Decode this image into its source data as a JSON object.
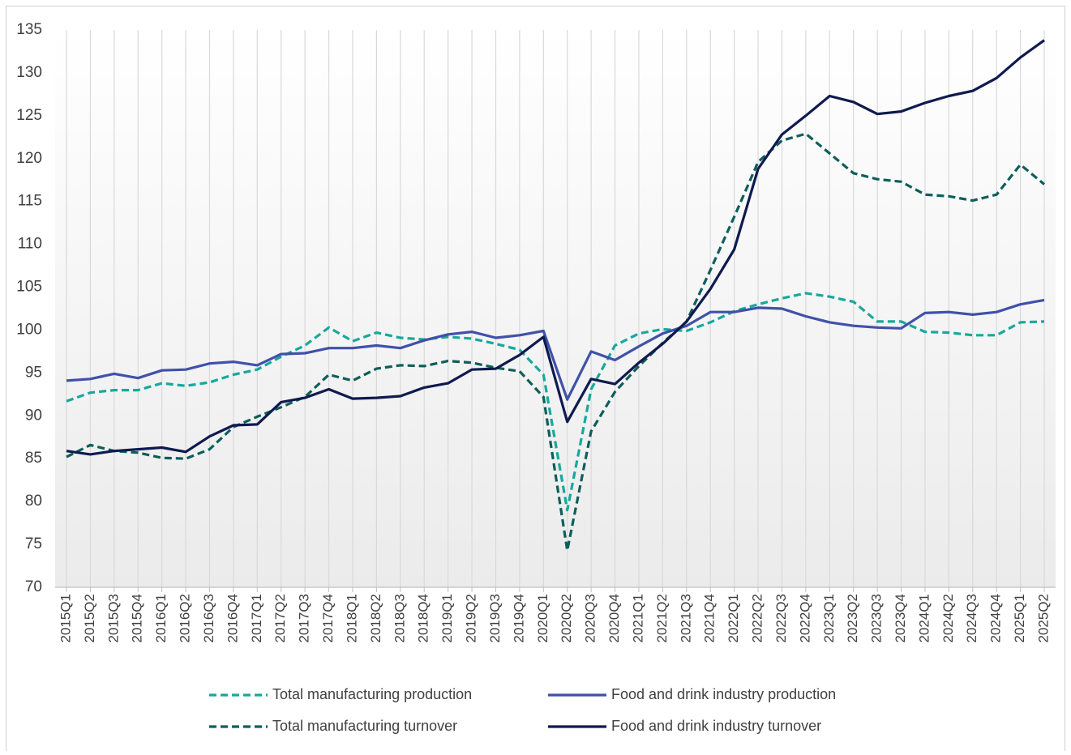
{
  "chart_data": {
    "type": "line",
    "categories": [
      "2015Q1",
      "2015Q2",
      "2015Q3",
      "2015Q4",
      "2016Q1",
      "2016Q2",
      "2016Q3",
      "2016Q4",
      "2017Q1",
      "2017Q2",
      "2017Q3",
      "2017Q4",
      "2018Q1",
      "2018Q2",
      "2018Q3",
      "2018Q4",
      "2019Q1",
      "2019Q2",
      "2019Q3",
      "2019Q4",
      "2020Q1",
      "2020Q2",
      "2020Q3",
      "2020Q4",
      "2021Q1",
      "2021Q2",
      "2021Q3",
      "2021Q4",
      "2022Q1",
      "2022Q2",
      "2022Q3",
      "2022Q4",
      "2023Q1",
      "2023Q2",
      "2023Q3",
      "2023Q4",
      "2024Q1",
      "2024Q2",
      "2024Q3",
      "2024Q4",
      "2025Q1",
      "2025Q2"
    ],
    "series": [
      {
        "name": "Total manufacturing production",
        "color": "#17a89c",
        "dashed": true,
        "values": [
          91.7,
          92.7,
          93.0,
          93.0,
          93.8,
          93.5,
          93.9,
          94.8,
          95.4,
          96.9,
          98.2,
          100.3,
          98.7,
          99.7,
          99.1,
          98.9,
          99.2,
          99.0,
          98.4,
          97.7,
          94.8,
          79.0,
          93.1,
          98.2,
          99.6,
          100.1,
          99.9,
          100.9,
          102.2,
          103.0,
          103.7,
          104.3,
          103.9,
          103.3,
          101.0,
          101.0,
          99.8,
          99.7,
          99.4,
          99.4,
          100.9,
          101.0
        ]
      },
      {
        "name": "Food and drink industry production",
        "color": "#3f51a8",
        "dashed": false,
        "values": [
          94.1,
          94.3,
          94.9,
          94.4,
          95.3,
          95.4,
          96.1,
          96.3,
          95.9,
          97.2,
          97.3,
          97.9,
          97.9,
          98.2,
          97.9,
          98.8,
          99.5,
          99.8,
          99.1,
          99.4,
          99.9,
          91.9,
          97.5,
          96.5,
          98.1,
          99.6,
          100.5,
          102.1,
          102.1,
          102.6,
          102.5,
          101.6,
          100.9,
          100.5,
          100.3,
          100.2,
          102.0,
          102.1,
          101.8,
          102.1,
          103.0,
          103.5
        ]
      },
      {
        "name": "Total manufacturing turnover",
        "color": "#0e5e5a",
        "dashed": true,
        "values": [
          85.2,
          86.6,
          85.9,
          85.7,
          85.1,
          85.0,
          86.1,
          88.7,
          89.9,
          91.0,
          92.2,
          94.8,
          94.1,
          95.5,
          95.9,
          95.8,
          96.4,
          96.2,
          95.6,
          95.2,
          92.2,
          74.3,
          88.2,
          92.8,
          95.8,
          98.5,
          101.0,
          107.0,
          113.2,
          119.6,
          122.1,
          122.9,
          120.6,
          118.3,
          117.6,
          117.3,
          115.8,
          115.6,
          115.1,
          115.8,
          119.3,
          117.0
        ]
      },
      {
        "name": "Food and drink industry turnover",
        "color": "#0f1a4f",
        "dashed": false,
        "values": [
          85.9,
          85.5,
          85.9,
          86.1,
          86.3,
          85.8,
          87.6,
          88.9,
          89.0,
          91.6,
          92.1,
          93.1,
          92.0,
          92.1,
          92.3,
          93.3,
          93.8,
          95.4,
          95.5,
          97.1,
          99.2,
          89.3,
          94.3,
          93.7,
          96.2,
          98.4,
          101.0,
          104.8,
          109.4,
          118.8,
          122.8,
          125.0,
          127.3,
          126.6,
          125.2,
          125.5,
          126.5,
          127.3,
          127.9,
          129.4,
          131.8,
          133.8
        ]
      }
    ],
    "ylim": [
      70,
      135
    ],
    "yticks": [
      70,
      75,
      80,
      85,
      90,
      95,
      100,
      105,
      110,
      115,
      120,
      125,
      130,
      135
    ],
    "xgrid": true,
    "legend": "bottom"
  }
}
